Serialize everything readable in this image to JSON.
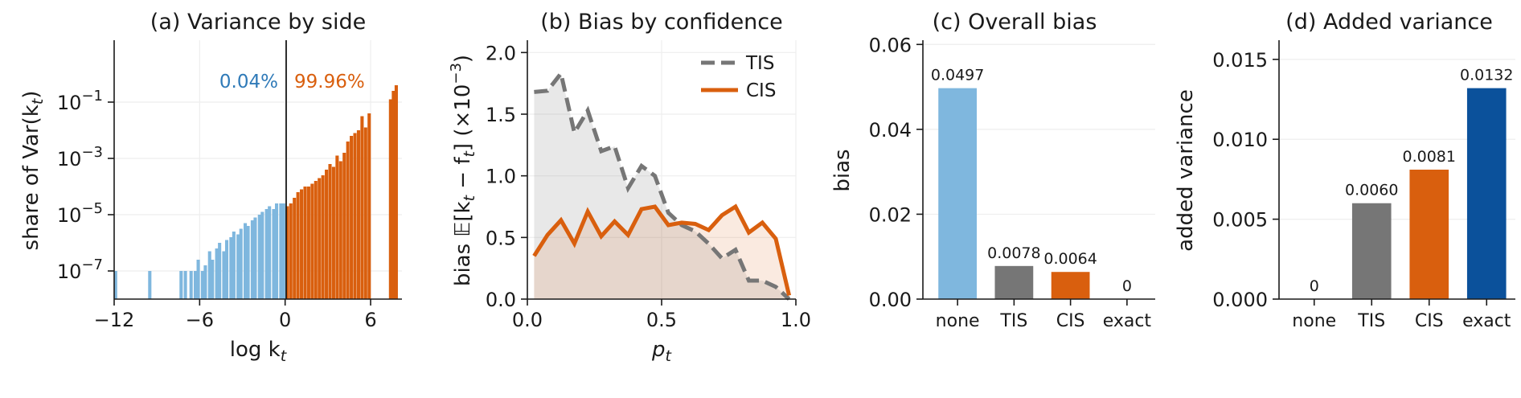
{
  "colors": {
    "left": "#7fb7de",
    "right": "#d95f0e",
    "tis": "#767676",
    "cis": "#d95f0e",
    "exact": "#0b519b",
    "none": "#7fb7de",
    "pct_left": "#2f7ab8",
    "pct_right": "#d95f0e"
  },
  "chart_data": [
    {
      "type": "bar",
      "title": "(a) Variance by side",
      "xlabel": "log k",
      "xlabel_sub": "t",
      "ylabel": "share of Var(k",
      "ylabel_sub": "t",
      "ylabel_end": ")",
      "yscale": "log",
      "xlim": [
        -12,
        8.2
      ],
      "ylim_exp": [
        -8,
        1.2
      ],
      "xticks": [
        "−12",
        "−6",
        "0",
        "6"
      ],
      "xtick_values": [
        -12,
        -6,
        0,
        6
      ],
      "ytick_exponents": [
        "−7",
        "−5",
        "−3",
        "−1"
      ],
      "ytick_values": [
        -7,
        -5,
        -3,
        -1
      ],
      "annotations": {
        "left_share": "0.04%",
        "right_share": "99.96%"
      },
      "divider_x": 0,
      "bar_width": 0.25,
      "bars_left_x": [
        -11.9,
        -9.5,
        -7.3,
        -7.0,
        -6.6,
        -6.3,
        -6.1,
        -5.8,
        -5.6,
        -5.3,
        -5.1,
        -4.8,
        -4.6,
        -4.3,
        -4.1,
        -3.8,
        -3.6,
        -3.3,
        -3.1,
        -2.8,
        -2.6,
        -2.3,
        -2.1,
        -1.8,
        -1.6,
        -1.3,
        -1.1,
        -0.8,
        -0.6,
        -0.3,
        -0.1
      ],
      "bars_left_log10": [
        -7.0,
        -7.0,
        -7.0,
        -7.0,
        -7.0,
        -7.0,
        -6.6,
        -7.0,
        -6.8,
        -6.3,
        -6.6,
        -6.2,
        -6.0,
        -6.3,
        -5.9,
        -5.8,
        -5.6,
        -5.7,
        -5.5,
        -5.3,
        -5.4,
        -5.2,
        -5.1,
        -5.0,
        -4.9,
        -4.8,
        -4.7,
        -4.8,
        -4.6,
        -4.6,
        -4.6
      ],
      "bars_right_x": [
        0.15,
        0.4,
        0.65,
        0.9,
        1.15,
        1.4,
        1.65,
        1.9,
        2.15,
        2.4,
        2.65,
        2.9,
        3.15,
        3.4,
        3.65,
        3.9,
        4.15,
        4.4,
        4.65,
        4.9,
        5.15,
        5.4,
        5.65,
        5.9,
        7.4,
        7.6,
        7.8
      ],
      "bars_right_log10": [
        -4.7,
        -4.6,
        -4.4,
        -4.2,
        -4.1,
        -4.0,
        -4.0,
        -3.9,
        -3.8,
        -3.7,
        -3.6,
        -3.4,
        -3.2,
        -3.3,
        -2.9,
        -3.1,
        -2.8,
        -2.4,
        -2.2,
        -2.1,
        -2.0,
        -1.5,
        -1.9,
        -1.4,
        -0.9,
        -0.6,
        -0.4
      ]
    },
    {
      "type": "area",
      "title": "(b) Bias by confidence",
      "xlabel": "p",
      "xlabel_sub": "t",
      "ylabel": "bias 𝔼[k",
      "ylabel_sub1": "t",
      "ylabel_mid": " − f",
      "ylabel_sub2": "t",
      "ylabel_end": "] (×10",
      "ylabel_sup": "−3",
      "ylabel_close": ")",
      "xlim": [
        0,
        1
      ],
      "ylim": [
        0,
        2.1
      ],
      "xticks": [
        "0.0",
        "0.5",
        "1.0"
      ],
      "xtick_values": [
        0,
        0.5,
        1
      ],
      "yticks": [
        "0.0",
        "0.5",
        "1.0",
        "1.5",
        "2.0"
      ],
      "ytick_values": [
        0,
        0.5,
        1,
        1.5,
        2
      ],
      "legend_position": "top-right",
      "x": [
        0.025,
        0.075,
        0.125,
        0.175,
        0.225,
        0.275,
        0.325,
        0.375,
        0.425,
        0.475,
        0.525,
        0.575,
        0.625,
        0.675,
        0.725,
        0.775,
        0.825,
        0.875,
        0.925,
        0.975
      ],
      "series": [
        {
          "name": "TIS",
          "style": "dashed",
          "values": [
            1.68,
            1.69,
            1.83,
            1.35,
            1.53,
            1.2,
            1.24,
            0.9,
            1.08,
            1.0,
            0.7,
            0.6,
            0.55,
            0.45,
            0.33,
            0.4,
            0.15,
            0.15,
            0.1,
            0.0
          ]
        },
        {
          "name": "CIS",
          "style": "solid",
          "values": [
            0.35,
            0.52,
            0.64,
            0.45,
            0.71,
            0.51,
            0.63,
            0.52,
            0.73,
            0.75,
            0.6,
            0.62,
            0.61,
            0.56,
            0.68,
            0.75,
            0.54,
            0.62,
            0.49,
            0.03
          ]
        }
      ]
    },
    {
      "type": "bar",
      "title": "(c) Overall bias",
      "ylabel": "bias",
      "ylim": [
        0,
        0.061
      ],
      "categories": [
        "none",
        "TIS",
        "CIS",
        "exact"
      ],
      "values": [
        0.0497,
        0.0078,
        0.0064,
        0
      ],
      "value_labels": [
        "0.0497",
        "0.0078",
        "0.0064",
        "0"
      ],
      "yticks": [
        "0.00",
        "0.02",
        "0.04",
        "0.06"
      ],
      "ytick_values": [
        0,
        0.02,
        0.04,
        0.06
      ]
    },
    {
      "type": "bar",
      "title": "(d) Added variance",
      "ylabel": "added variance",
      "ylim": [
        0,
        0.0162
      ],
      "categories": [
        "none",
        "TIS",
        "CIS",
        "exact"
      ],
      "values": [
        0,
        0.006,
        0.0081,
        0.0132
      ],
      "value_labels": [
        "0",
        "0.0060",
        "0.0081",
        "0.0132"
      ],
      "yticks": [
        "0.000",
        "0.005",
        "0.010",
        "0.015"
      ],
      "ytick_values": [
        0,
        0.005,
        0.01,
        0.015
      ]
    }
  ]
}
